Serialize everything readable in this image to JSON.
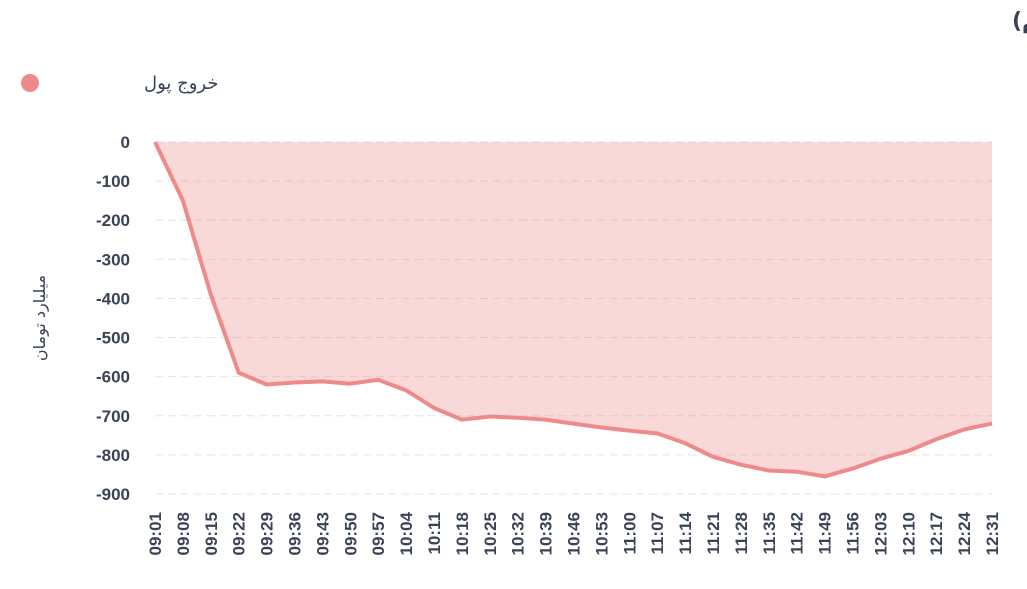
{
  "chart_data": {
    "type": "area",
    "title": "روند تغییر مالکیت حقیقی (سهام و حق تقدم)",
    "y_label": "میلیارد تومان",
    "categories": [
      "09:01",
      "09:08",
      "09:15",
      "09:22",
      "09:29",
      "09:36",
      "09:43",
      "09:50",
      "09:57",
      "10:04",
      "10:11",
      "10:18",
      "10:25",
      "10:32",
      "10:39",
      "10:46",
      "10:53",
      "11:00",
      "11:07",
      "11:14",
      "11:21",
      "11:28",
      "11:35",
      "11:42",
      "11:49",
      "11:56",
      "12:03",
      "12:10",
      "12:17",
      "12:24",
      "12:31"
    ],
    "series": [
      {
        "name": "خروج پول",
        "color": "#ee8a8a",
        "values": [
          0,
          -150,
          -390,
          -590,
          -620,
          -615,
          -612,
          -618,
          -608,
          -635,
          -680,
          -710,
          -702,
          -705,
          -710,
          -720,
          -730,
          -738,
          -745,
          -770,
          -805,
          -825,
          -840,
          -843,
          -855,
          -835,
          -810,
          -790,
          -760,
          -735,
          -720
        ]
      }
    ],
    "ylim": [
      -900,
      0
    ],
    "yticks": [
      0,
      -100,
      -200,
      -300,
      -400,
      -500,
      -600,
      -700,
      -800,
      -900
    ],
    "grid": true,
    "legend": "top-right"
  }
}
